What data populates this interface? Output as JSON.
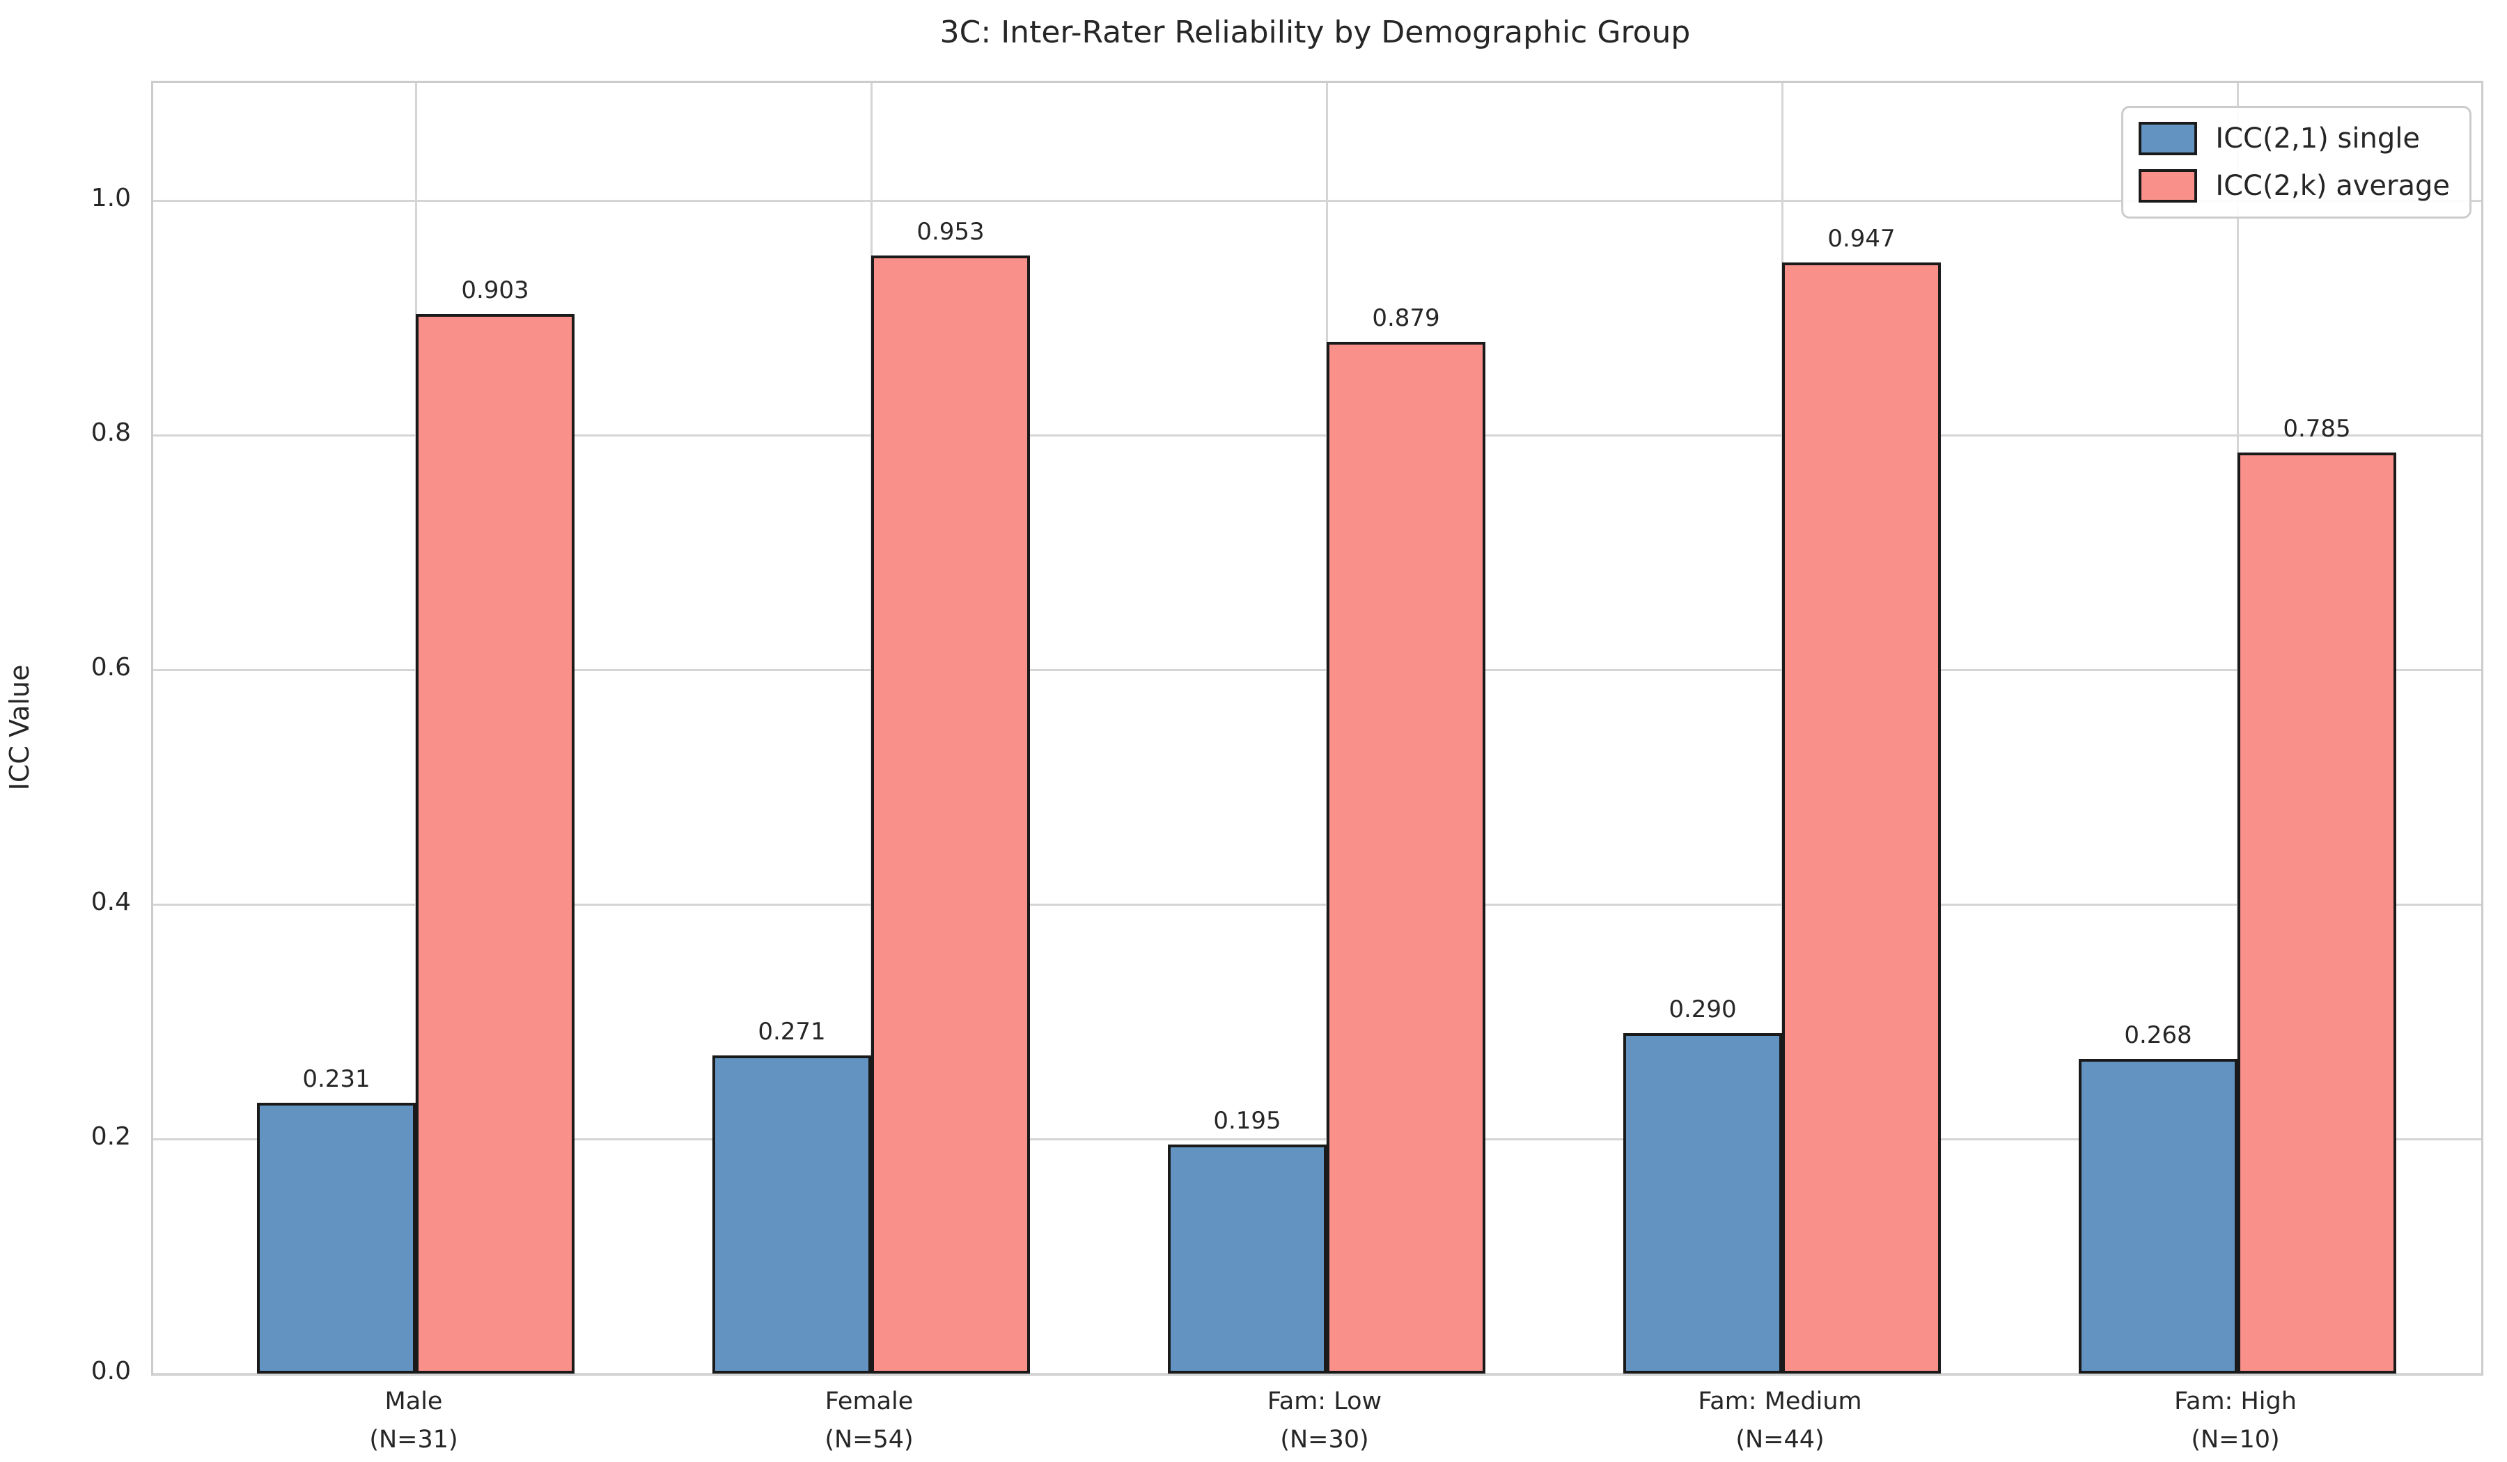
{
  "figure": {
    "title": "3C: Inter-Rater Reliability by Demographic Group",
    "ylabel": "ICC Value"
  },
  "chart_data": {
    "type": "bar",
    "title": "3C: Inter-Rater Reliability by Demographic Group",
    "xlabel": "",
    "ylabel": "ICC Value",
    "ylim": [
      0,
      1.1
    ],
    "yticks": [
      "0.0",
      "0.2",
      "0.4",
      "0.6",
      "0.8",
      "1.0"
    ],
    "grid": "both",
    "legend_position": "upper right",
    "categories": [
      {
        "line1": "Male",
        "line2": "(N=31)"
      },
      {
        "line1": "Female",
        "line2": "(N=54)"
      },
      {
        "line1": "Fam: Low",
        "line2": "(N=30)"
      },
      {
        "line1": "Fam: Medium",
        "line2": "(N=44)"
      },
      {
        "line1": "Fam: High",
        "line2": "(N=10)"
      }
    ],
    "series": [
      {
        "name": "ICC(2,1) single",
        "color": "#6394C1",
        "edge_color": "#1a1a1a",
        "values": [
          0.231,
          0.271,
          0.195,
          0.29,
          0.268
        ],
        "value_labels": [
          "0.231",
          "0.271",
          "0.195",
          "0.290",
          "0.268"
        ]
      },
      {
        "name": "ICC(2,k) average",
        "color": "#F9918A",
        "edge_color": "#1a1a1a",
        "values": [
          0.903,
          0.953,
          0.879,
          0.947,
          0.785
        ],
        "value_labels": [
          "0.903",
          "0.953",
          "0.879",
          "0.947",
          "0.785"
        ]
      }
    ],
    "colors": {
      "grid": "#d5d5d5",
      "spine": "#cccccc",
      "text": "#262626",
      "background": "#ffffff"
    }
  }
}
